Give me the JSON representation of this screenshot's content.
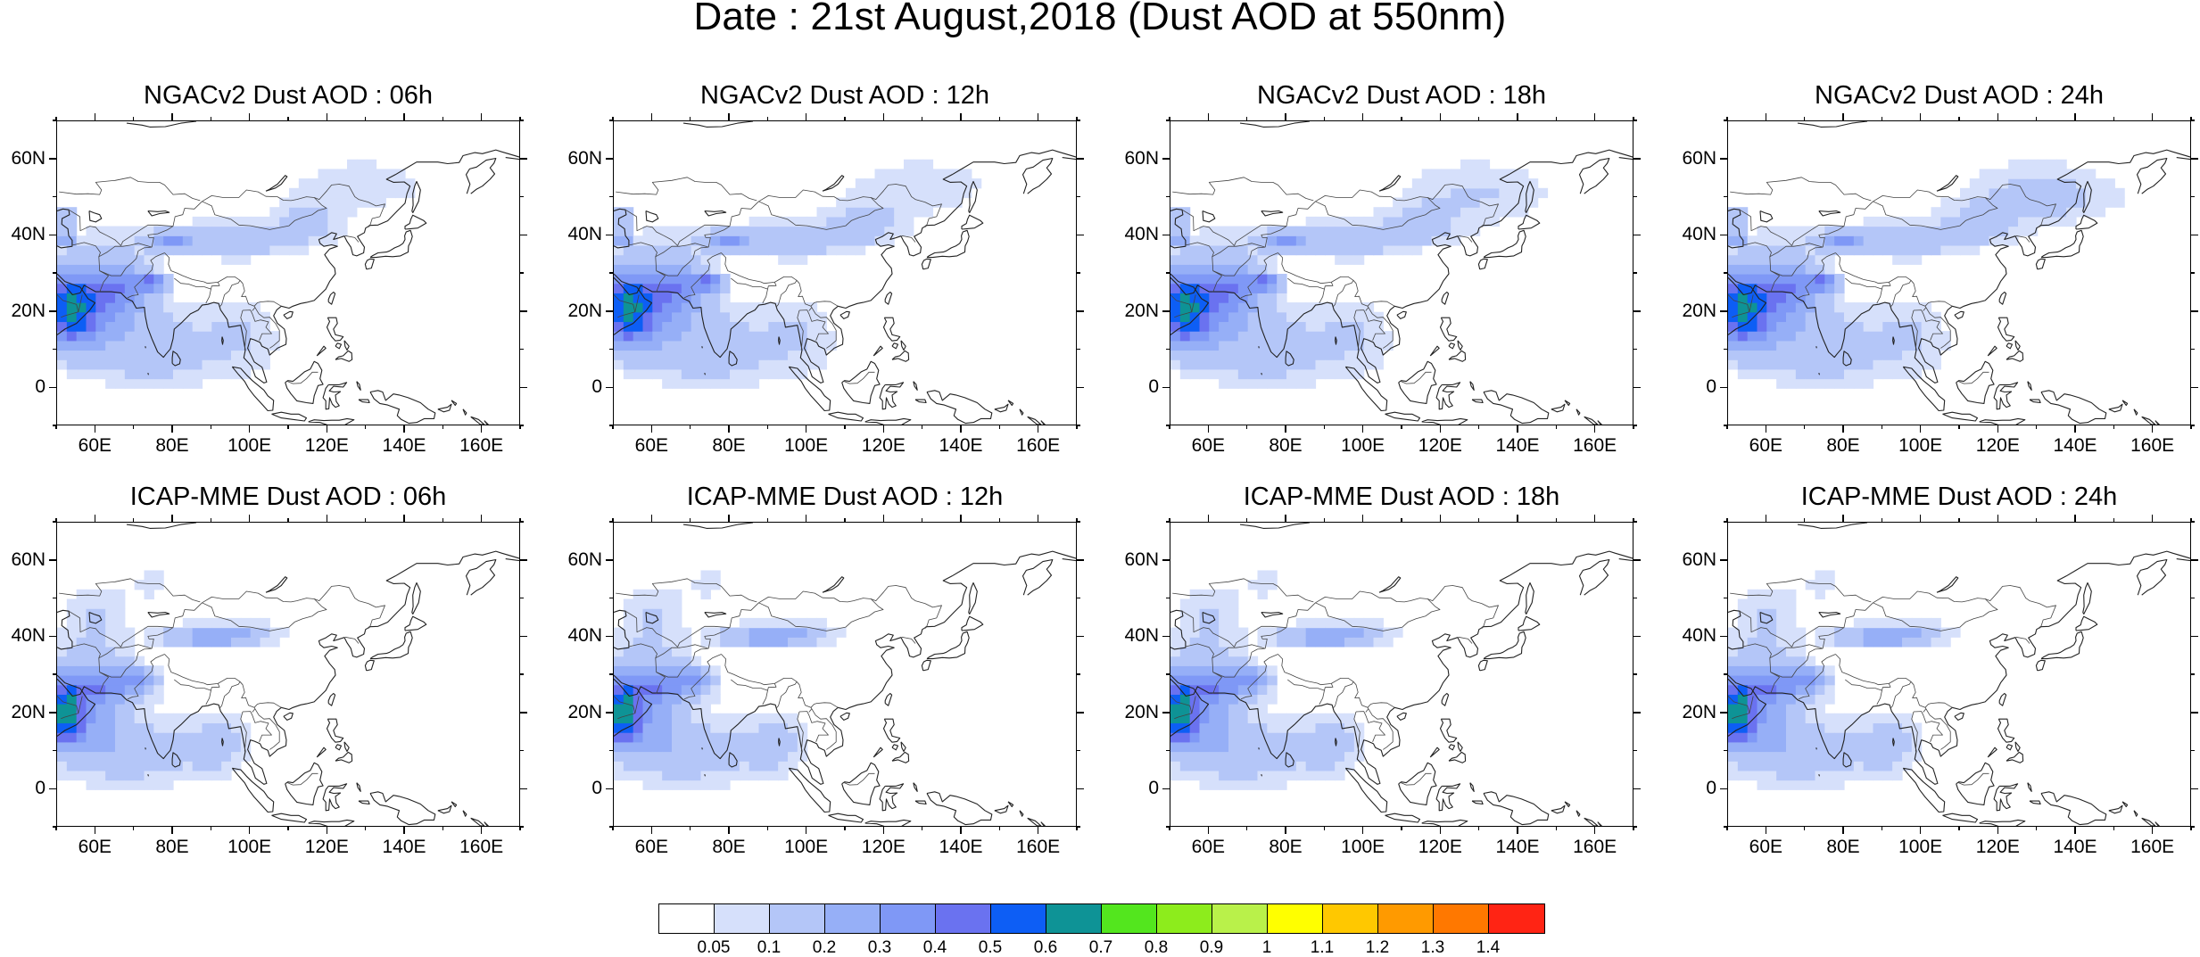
{
  "title": "Date : 21st August,2018 (Dust AOD at 550nm)",
  "panels": [
    {
      "title": "NGACv2 Dust AOD : 06h",
      "model": "NGACv2",
      "hour": "06h"
    },
    {
      "title": "NGACv2 Dust AOD : 12h",
      "model": "NGACv2",
      "hour": "12h"
    },
    {
      "title": "NGACv2 Dust AOD : 18h",
      "model": "NGACv2",
      "hour": "18h"
    },
    {
      "title": "NGACv2 Dust AOD : 24h",
      "model": "NGACv2",
      "hour": "24h"
    },
    {
      "title": "ICAP-MME Dust AOD : 06h",
      "model": "ICAP-MME",
      "hour": "06h"
    },
    {
      "title": "ICAP-MME Dust AOD : 12h",
      "model": "ICAP-MME",
      "hour": "12h"
    },
    {
      "title": "ICAP-MME Dust AOD : 18h",
      "model": "ICAP-MME",
      "hour": "18h"
    },
    {
      "title": "ICAP-MME Dust AOD : 24h",
      "model": "ICAP-MME",
      "hour": "24h"
    }
  ],
  "axes": {
    "lat_ticks": [
      "60N",
      "40N",
      "20N",
      "0"
    ],
    "lon_ticks": [
      "60E",
      "80E",
      "100E",
      "120E",
      "140E",
      "160E"
    ],
    "lon_range": [
      50,
      170
    ],
    "lat_range": [
      -10,
      70
    ]
  },
  "colorbar": {
    "labels": [
      "0.05",
      "0.1",
      "0.2",
      "0.3",
      "0.4",
      "0.5",
      "0.6",
      "0.7",
      "0.8",
      "0.9",
      "1",
      "1.1",
      "1.2",
      "1.3",
      "1.4"
    ],
    "colors": [
      "#ffffff",
      "#d6e0fb",
      "#b4c6f8",
      "#96aff7",
      "#7f98f6",
      "#6a72f0",
      "#0d5ef5",
      "#0e9396",
      "#53e61e",
      "#8dec1c",
      "#b9f14a",
      "#ffff00",
      "#ffc800",
      "#ff9a00",
      "#ff7800",
      "#ff2414"
    ]
  }
}
